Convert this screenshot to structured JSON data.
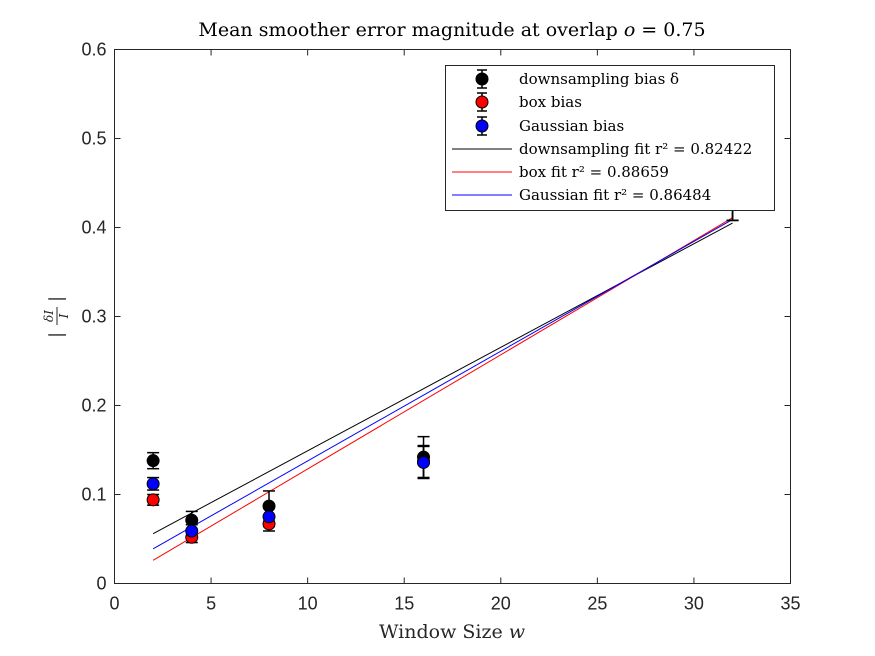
{
  "chart_data": {
    "type": "scatter",
    "title": "Mean smoother error magnitude at overlap o = 0.75",
    "xlabel": "Window Size w",
    "ylabel": "|δI/I|",
    "xlim": [
      0,
      35
    ],
    "ylim": [
      0,
      0.6
    ],
    "xticks": [
      "0",
      "5",
      "10",
      "15",
      "20",
      "25",
      "30",
      "35"
    ],
    "yticks": [
      "0",
      "0.1",
      "0.2",
      "0.3",
      "0.4",
      "0.5",
      "0.6"
    ],
    "grid": false,
    "legend_position": "top-right",
    "series": [
      {
        "name": "downsampling bias δ",
        "kind": "errorbar",
        "color": "#000000",
        "x": [
          2,
          4,
          8,
          16,
          32
        ],
        "y": [
          0.138,
          0.071,
          0.087,
          0.142,
          0.42
        ],
        "err": [
          0.009,
          0.01,
          0.017,
          0.023,
          0.012
        ]
      },
      {
        "name": "box bias",
        "kind": "errorbar",
        "color": "#ff0000",
        "x": [
          2,
          4,
          8,
          16,
          32
        ],
        "y": [
          0.094,
          0.052,
          0.067,
          0.137,
          0.42
        ],
        "err": [
          0.006,
          0.006,
          0.008,
          0.018,
          0.012
        ]
      },
      {
        "name": "Gaussian bias",
        "kind": "errorbar",
        "color": "#0000ff",
        "x": [
          2,
          4,
          8,
          16,
          32
        ],
        "y": [
          0.112,
          0.059,
          0.075,
          0.136,
          0.42
        ],
        "err": [
          0.007,
          0.007,
          0.011,
          0.018,
          0.012
        ]
      },
      {
        "name": "downsampling fit r² = 0.82422",
        "kind": "line",
        "color": "#000000",
        "x": [
          2,
          32
        ],
        "y": [
          0.056,
          0.405
        ]
      },
      {
        "name": "box fit r² = 0.88659",
        "kind": "line",
        "color": "#ff0000",
        "x": [
          2,
          32
        ],
        "y": [
          0.026,
          0.411
        ]
      },
      {
        "name": "Gaussian fit r² = 0.86484",
        "kind": "line",
        "color": "#0000ff",
        "x": [
          2,
          32
        ],
        "y": [
          0.039,
          0.409
        ]
      }
    ]
  }
}
